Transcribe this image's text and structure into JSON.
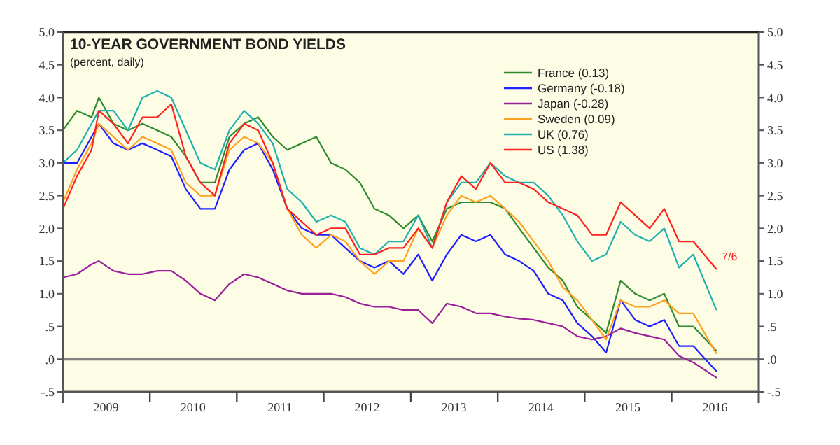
{
  "chart_data": {
    "type": "line",
    "title": "10-YEAR GOVERNMENT BOND YIELDS",
    "subtitle": "(percent, daily)",
    "x": [
      "2009-01",
      "2009-03",
      "2009-05",
      "2009-06",
      "2009-08",
      "2009-10",
      "2009-12",
      "2010-02",
      "2010-04",
      "2010-06",
      "2010-08",
      "2010-10",
      "2010-12",
      "2011-02",
      "2011-04",
      "2011-06",
      "2011-08",
      "2011-10",
      "2011-12",
      "2012-02",
      "2012-04",
      "2012-06",
      "2012-08",
      "2012-10",
      "2012-12",
      "2013-02",
      "2013-04",
      "2013-06",
      "2013-08",
      "2013-10",
      "2013-12",
      "2014-02",
      "2014-04",
      "2014-06",
      "2014-08",
      "2014-10",
      "2014-12",
      "2015-02",
      "2015-04",
      "2015-06",
      "2015-08",
      "2015-10",
      "2015-12",
      "2016-02",
      "2016-04",
      "2016-07-06"
    ],
    "series": [
      {
        "name": "France (0.13)",
        "color": "#2e8b2e",
        "values": [
          3.5,
          3.8,
          3.7,
          4.0,
          3.6,
          3.5,
          3.6,
          3.5,
          3.4,
          3.1,
          2.7,
          2.7,
          3.4,
          3.6,
          3.7,
          3.4,
          3.2,
          3.3,
          3.4,
          3.0,
          2.9,
          2.7,
          2.3,
          2.2,
          2.0,
          2.2,
          1.8,
          2.3,
          2.4,
          2.4,
          2.4,
          2.3,
          2.0,
          1.7,
          1.4,
          1.2,
          0.8,
          0.6,
          0.4,
          1.2,
          1.0,
          0.9,
          1.0,
          0.5,
          0.5,
          0.13
        ]
      },
      {
        "name": "Germany (-0.18)",
        "color": "#1f1fff",
        "values": [
          3.0,
          3.0,
          3.4,
          3.6,
          3.3,
          3.2,
          3.3,
          3.2,
          3.1,
          2.6,
          2.3,
          2.3,
          2.9,
          3.2,
          3.3,
          2.9,
          2.3,
          2.0,
          1.9,
          1.9,
          1.7,
          1.5,
          1.4,
          1.5,
          1.3,
          1.6,
          1.2,
          1.6,
          1.9,
          1.8,
          1.9,
          1.6,
          1.5,
          1.35,
          1.0,
          0.9,
          0.55,
          0.35,
          0.1,
          0.9,
          0.6,
          0.5,
          0.6,
          0.2,
          0.2,
          -0.18
        ]
      },
      {
        "name": "Japan (-0.28)",
        "color": "#9b1f9b",
        "values": [
          1.25,
          1.3,
          1.45,
          1.5,
          1.35,
          1.3,
          1.3,
          1.35,
          1.35,
          1.2,
          1.0,
          0.9,
          1.15,
          1.3,
          1.25,
          1.15,
          1.05,
          1.0,
          1.0,
          1.0,
          0.95,
          0.85,
          0.8,
          0.8,
          0.75,
          0.75,
          0.55,
          0.85,
          0.8,
          0.7,
          0.7,
          0.65,
          0.62,
          0.6,
          0.55,
          0.5,
          0.35,
          0.3,
          0.35,
          0.47,
          0.4,
          0.35,
          0.3,
          0.05,
          -0.05,
          -0.28
        ]
      },
      {
        "name": "Sweden (0.09)",
        "color": "#ffa020",
        "values": [
          2.4,
          2.9,
          3.3,
          3.6,
          3.4,
          3.2,
          3.4,
          3.3,
          3.2,
          2.7,
          2.5,
          2.5,
          3.2,
          3.4,
          3.3,
          3.0,
          2.3,
          1.9,
          1.7,
          1.9,
          1.8,
          1.5,
          1.3,
          1.5,
          1.5,
          2.0,
          1.7,
          2.2,
          2.5,
          2.4,
          2.5,
          2.3,
          2.1,
          1.8,
          1.5,
          1.1,
          0.9,
          0.6,
          0.3,
          0.9,
          0.8,
          0.8,
          0.9,
          0.7,
          0.7,
          0.09
        ]
      },
      {
        "name": "UK (0.76)",
        "color": "#20b0b0",
        "values": [
          3.0,
          3.2,
          3.6,
          3.8,
          3.8,
          3.5,
          4.0,
          4.1,
          4.0,
          3.5,
          3.0,
          2.9,
          3.5,
          3.8,
          3.6,
          3.3,
          2.6,
          2.4,
          2.1,
          2.2,
          2.1,
          1.7,
          1.6,
          1.8,
          1.8,
          2.2,
          1.7,
          2.4,
          2.7,
          2.7,
          3.0,
          2.8,
          2.7,
          2.7,
          2.5,
          2.2,
          1.8,
          1.5,
          1.6,
          2.1,
          1.9,
          1.8,
          2.0,
          1.4,
          1.6,
          0.76
        ]
      },
      {
        "name": "US (1.38)",
        "color": "#ff2020",
        "values": [
          2.3,
          2.8,
          3.2,
          3.8,
          3.6,
          3.3,
          3.7,
          3.7,
          3.9,
          3.1,
          2.7,
          2.5,
          3.3,
          3.6,
          3.5,
          3.0,
          2.3,
          2.1,
          1.9,
          2.0,
          2.0,
          1.6,
          1.6,
          1.7,
          1.7,
          2.0,
          1.7,
          2.4,
          2.8,
          2.6,
          3.0,
          2.7,
          2.7,
          2.6,
          2.4,
          2.3,
          2.2,
          1.9,
          1.9,
          2.4,
          2.2,
          2.0,
          2.3,
          1.8,
          1.8,
          1.38
        ]
      }
    ],
    "xlim": [
      "2009-01-01",
      "2017-01-01"
    ],
    "xticks": [
      {
        "value": "2009-07-01",
        "label": "2009"
      },
      {
        "value": "2010-01-01",
        "label": null
      },
      {
        "value": "2010-07-01",
        "label": "2010"
      },
      {
        "value": "2011-01-01",
        "label": null
      },
      {
        "value": "2011-07-01",
        "label": "2011"
      },
      {
        "value": "2012-01-01",
        "label": null
      },
      {
        "value": "2012-07-01",
        "label": "2012"
      },
      {
        "value": "2013-01-01",
        "label": null
      },
      {
        "value": "2013-07-01",
        "label": "2013"
      },
      {
        "value": "2014-01-01",
        "label": null
      },
      {
        "value": "2014-07-01",
        "label": "2014"
      },
      {
        "value": "2015-01-01",
        "label": null
      },
      {
        "value": "2015-07-01",
        "label": "2015"
      },
      {
        "value": "2016-01-01",
        "label": null
      },
      {
        "value": "2016-07-01",
        "label": "2016"
      }
    ],
    "ylim": [
      -0.5,
      5.0
    ],
    "yticks": [
      {
        "value": 5.0,
        "label": "5.0"
      },
      {
        "value": 4.5,
        "label": "4.5"
      },
      {
        "value": 4.0,
        "label": "4.0"
      },
      {
        "value": 3.5,
        "label": "3.5"
      },
      {
        "value": 3.0,
        "label": "3.0"
      },
      {
        "value": 2.5,
        "label": "2.5"
      },
      {
        "value": 2.0,
        "label": "2.0"
      },
      {
        "value": 1.5,
        "label": "1.5"
      },
      {
        "value": 1.0,
        "label": "1.0"
      },
      {
        "value": 0.5,
        "label": ".5"
      },
      {
        "value": 0,
        "label": ".0"
      },
      {
        "value": -0.5,
        "label": "-.5"
      }
    ],
    "y2lim": [
      -0.5,
      5.0
    ],
    "y2ticks": [
      {
        "value": 5.0,
        "label": "5.0"
      },
      {
        "value": 4.5,
        "label": "4.5"
      },
      {
        "value": 4.0,
        "label": "4.0"
      },
      {
        "value": 3.5,
        "label": "3.5"
      },
      {
        "value": 3.0,
        "label": "3.0"
      },
      {
        "value": 2.5,
        "label": "2.5"
      },
      {
        "value": 2.0,
        "label": "2.0"
      },
      {
        "value": 1.5,
        "label": "1.5"
      },
      {
        "value": 1.0,
        "label": "1.0"
      },
      {
        "value": 0.5,
        "label": ".5"
      },
      {
        "value": 0,
        "label": ".0"
      },
      {
        "value": -0.5,
        "label": "-.5"
      }
    ],
    "ref_lines": [
      {
        "axis": "y",
        "value": 0,
        "color": "#808080"
      }
    ],
    "annotations": [
      {
        "text": "7/6",
        "x": "2016-07-06",
        "y": 1.38
      }
    ],
    "legend": "top right",
    "grid": false
  }
}
